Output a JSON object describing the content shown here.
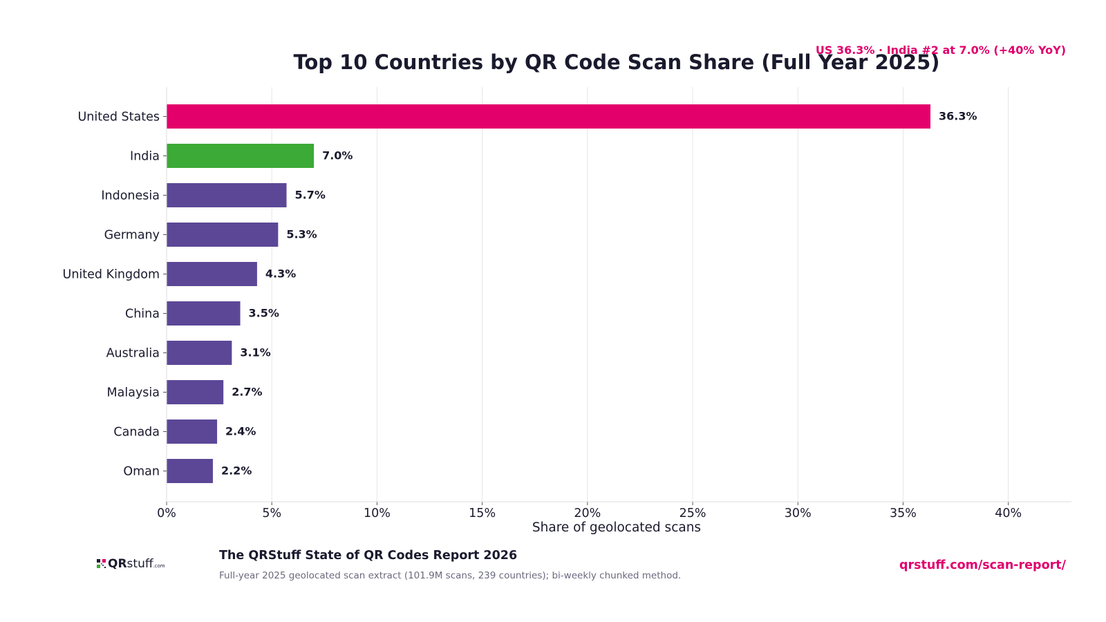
{
  "chart_data": {
    "type": "bar",
    "orientation": "horizontal",
    "title": "Top 10 Countries by QR Code Scan Share (Full Year 2025)",
    "annotation": "US 36.3% · India #2 at 7.0% (+40% YoY)",
    "xlabel": "Share of geolocated scans",
    "ylabel": "",
    "xlim": [
      0,
      43
    ],
    "x_ticks": [
      0,
      5,
      10,
      15,
      20,
      25,
      30,
      35,
      40
    ],
    "x_tick_labels": [
      "0%",
      "5%",
      "10%",
      "15%",
      "20%",
      "25%",
      "30%",
      "35%",
      "40%"
    ],
    "grid": "vertical",
    "categories": [
      "United States",
      "India",
      "Indonesia",
      "Germany",
      "United Kingdom",
      "China",
      "Australia",
      "Malaysia",
      "Canada",
      "Oman"
    ],
    "values": [
      36.3,
      7.0,
      5.7,
      5.3,
      4.3,
      3.5,
      3.1,
      2.7,
      2.4,
      2.2
    ],
    "value_labels": [
      "36.3%",
      "7.0%",
      "5.7%",
      "5.3%",
      "4.3%",
      "3.5%",
      "3.1%",
      "2.7%",
      "2.4%",
      "2.2%"
    ],
    "bar_colors": [
      "#e3006b",
      "#3caa36",
      "#5c4797",
      "#5c4797",
      "#5c4797",
      "#5c4797",
      "#5c4797",
      "#5c4797",
      "#5c4797",
      "#5c4797"
    ]
  },
  "colors": {
    "accent": "#e0006c",
    "highlight": "#3caa36",
    "default_bar": "#5c4797",
    "grid": "#e6e6ea",
    "text": "#1a1a2e",
    "muted": "#6a6a7e"
  },
  "footer": {
    "logo_prefix": "QR",
    "logo_main": "stuff",
    "logo_suffix": ".com",
    "title": "The QRStuff State of QR Codes Report 2026",
    "subtitle": "Full-year 2025 geolocated scan extract (101.9M scans, 239 countries); bi-weekly chunked method.",
    "link": "qrstuff.com/scan-report/"
  }
}
